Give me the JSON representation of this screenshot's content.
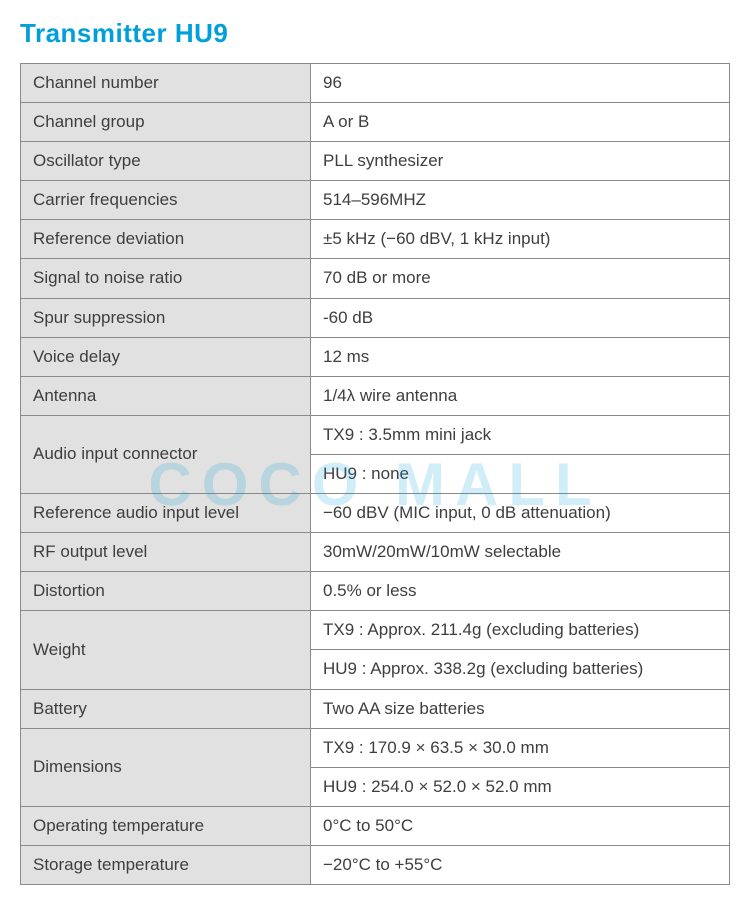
{
  "title": "Transmitter HU9",
  "title_color": "#009fda",
  "label_bg": "#e1e1e1",
  "value_bg": "#ffffff",
  "border_color": "#8a8a8a",
  "text_color": "#3e3e3e",
  "watermark": {
    "text": "COCO MALL",
    "color": "#009fda"
  },
  "rows": [
    {
      "label": "Channel number",
      "value": "96"
    },
    {
      "label": "Channel group",
      "value": "A or B"
    },
    {
      "label": "Oscillator type",
      "value": "PLL synthesizer"
    },
    {
      "label": "Carrier frequencies",
      "value": "514–596MHZ"
    },
    {
      "label": "Reference deviation",
      "value": "±5 kHz (−60 dBV, 1 kHz input)"
    },
    {
      "label": "Signal to noise ratio",
      "value": "70 dB or more"
    },
    {
      "label": "Spur suppression",
      "value": "-60 dB"
    },
    {
      "label": "Voice delay",
      "value": "12 ms"
    },
    {
      "label": "Antenna",
      "value": "1/4λ wire antenna"
    },
    {
      "label": "Audio input connector",
      "value": "TX9 : 3.5mm mini jack",
      "value2": "HU9 : none"
    },
    {
      "label": "Reference audio input level",
      "value": "−60 dBV (MIC input, 0 dB attenuation)"
    },
    {
      "label": "RF output level",
      "value": "30mW/20mW/10mW selectable"
    },
    {
      "label": "Distortion",
      "value": "0.5% or less"
    },
    {
      "label": "Weight",
      "value": "TX9 : Approx. 211.4g (excluding batteries)",
      "value2": "HU9 : Approx. 338.2g (excluding batteries)"
    },
    {
      "label": "Battery",
      "value": "Two AA size batteries"
    },
    {
      "label": "Dimensions",
      "value": "TX9 : 170.9 × 63.5 × 30.0 mm",
      "value2": "HU9 : 254.0 × 52.0 × 52.0 mm"
    },
    {
      "label": "Operating temperature",
      "value": "0°C to 50°C"
    },
    {
      "label": "Storage temperature",
      "value": "−20°C to +55°C"
    }
  ]
}
